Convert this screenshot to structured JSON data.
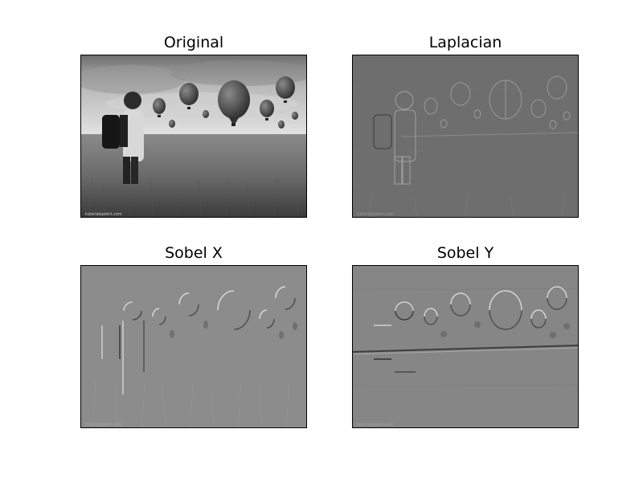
{
  "figure": {
    "panels": [
      {
        "title": "Original",
        "kind": "photo"
      },
      {
        "title": "Laplacian",
        "kind": "laplacian"
      },
      {
        "title": "Sobel X",
        "kind": "sobelx"
      },
      {
        "title": "Sobel Y",
        "kind": "sobely"
      }
    ],
    "watermark": "tutorialspoint.com"
  }
}
